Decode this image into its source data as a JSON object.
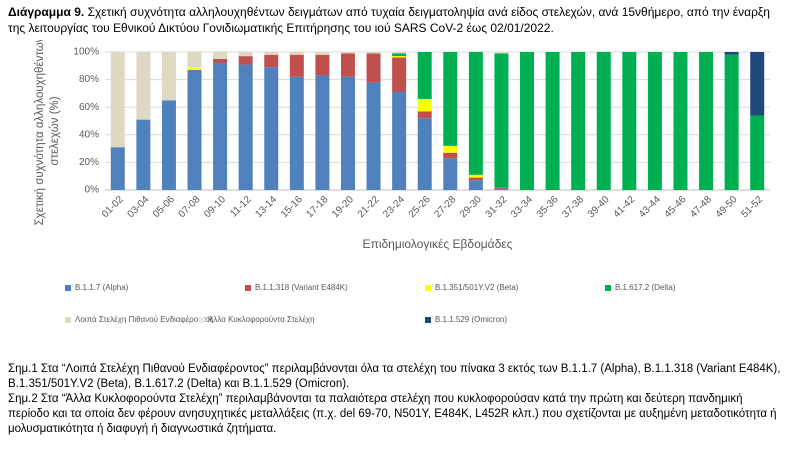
{
  "chart_data": {
    "type": "stacked_bar",
    "title_label": "Διάγραμμα 9.",
    "title": "Σχετική συχνότητα αλληλουχηθέντων δειγμάτων από τυχαία δειγματοληψία ανά είδος στελεχών, ανά 15νθήμερο, από την έναρξη της λειτουργίας του Εθνικού Δικτύου Γονιδιωματικής Επιτήρησης του ιού SARS CoV-2 έως 02/01/2022.",
    "y_label": [
      "Σχετική συχνότητα αλληλουχηθέντων",
      "στελεχών (%)"
    ],
    "x_label": "Επιδημιολογικές Εβδομάδες",
    "categories": [
      "01-02",
      "03-04",
      "05-06",
      "07-08",
      "09-10",
      "11-12",
      "13-14",
      "15-16",
      "17-18",
      "19-20",
      "21-22",
      "23-24",
      "25-26",
      "27-28",
      "29-30",
      "31-32",
      "33-34",
      "35-36",
      "37-38",
      "39-40",
      "41-42",
      "43-44",
      "45-46",
      "47-48",
      "49-50",
      "51-52"
    ],
    "series": [
      {
        "name": "B.1.1.7 (Alpha)",
        "color": "#4f81bd",
        "values": [
          31,
          51,
          65,
          87,
          92,
          91,
          89,
          82,
          83,
          82,
          78,
          71,
          52,
          23,
          7,
          1,
          0,
          0,
          0,
          0,
          0,
          0,
          0,
          0,
          0,
          0
        ]
      },
      {
        "name": "B.1.1.318 (Variant E484K)",
        "color": "#c0504d",
        "values": [
          0,
          0,
          0,
          0,
          3,
          6,
          9,
          16,
          15,
          17,
          21,
          25,
          5,
          4,
          2,
          1,
          0,
          0,
          0,
          0,
          0,
          0,
          0,
          0,
          0,
          0
        ]
      },
      {
        "name": "B.1.351/501Y.V2 (Beta)",
        "color": "#ffff00",
        "values": [
          0,
          0,
          0,
          2,
          0,
          0,
          0,
          0,
          0,
          0,
          0,
          1,
          9,
          5,
          2,
          0,
          0,
          0,
          0,
          0,
          0,
          0,
          0,
          0,
          0,
          0
        ]
      },
      {
        "name": "B.1.617.2 (Delta)",
        "color": "#00b050",
        "values": [
          0,
          0,
          0,
          0,
          0,
          0,
          0,
          0,
          0,
          0,
          0,
          2,
          34,
          68,
          89,
          97,
          100,
          100,
          100,
          100,
          100,
          100,
          100,
          100,
          98,
          54
        ]
      },
      {
        "name": "Λοιπά Στελέχη Πιθανού Ενδιαφέροντος",
        "color": "#ddd9c3",
        "values": [
          69,
          49,
          35,
          11,
          5,
          3,
          2,
          2,
          2,
          1,
          1,
          1,
          0,
          0,
          0,
          1,
          0,
          0,
          0,
          0,
          0,
          0,
          0,
          0,
          0,
          0
        ]
      },
      {
        "name": "Άλλα Κυκλοφορούντα Στελέχη",
        "color": "#eeece1",
        "values": [
          0,
          0,
          0,
          0,
          0,
          0,
          0,
          0,
          0,
          0,
          0,
          0,
          0,
          0,
          0,
          0,
          0,
          0,
          0,
          0,
          0,
          0,
          0,
          0,
          0,
          0
        ]
      },
      {
        "name": "B.1.1.529 (Omicron)",
        "color": "#1f497d",
        "values": [
          0,
          0,
          0,
          0,
          0,
          0,
          0,
          0,
          0,
          0,
          0,
          0,
          0,
          0,
          0,
          0,
          0,
          0,
          0,
          0,
          0,
          0,
          0,
          0,
          2,
          46
        ]
      }
    ],
    "ylim": [
      0,
      100
    ],
    "yticks": [
      {
        "value": 0,
        "label": "0%"
      },
      {
        "value": 20,
        "label": "20%"
      },
      {
        "value": 40,
        "label": "40%"
      },
      {
        "value": 60,
        "label": "60%"
      },
      {
        "value": 80,
        "label": "80%"
      },
      {
        "value": 100,
        "label": "100%"
      }
    ],
    "grid": true
  },
  "notes": [
    "Σημ.1 Στα “Λοιπά Στελέχη Πιθανού Ενδιαφέροντος” περιλαμβάνονται όλα τα στελέχη του πίνακα 3 εκτός των B.1.1.7 (Alpha), B.1.1.318 (Variant E484K), B.1.351/501Y.V2 (Beta), B.1.617.2 (Delta) και B.1.1.529 (Omicron).",
    "Σημ.2 Στα “Άλλα Κυκλοφορούντα Στελέχη” περιλαμβάνονται τα παλαιότερα στελέχη που κυκλοφορούσαν κατά την πρώτη και δεύτερη πανδημική περίοδο και τα οποία δεν φέρουν ανησυχητικές μεταλλάξεις (π.χ. del 69-70, N501Y, E484K, L452R κλπ.) που σχετίζονται με αυξημένη μεταδοτικότητα ή μολυσματικότητα ή διαφυγή ή διαγνωστικά ζητήματα."
  ]
}
